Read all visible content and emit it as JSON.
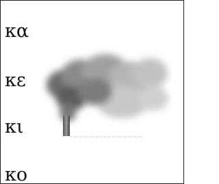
{
  "options": [
    "κα",
    "κε",
    "κι",
    "κο"
  ]
}
